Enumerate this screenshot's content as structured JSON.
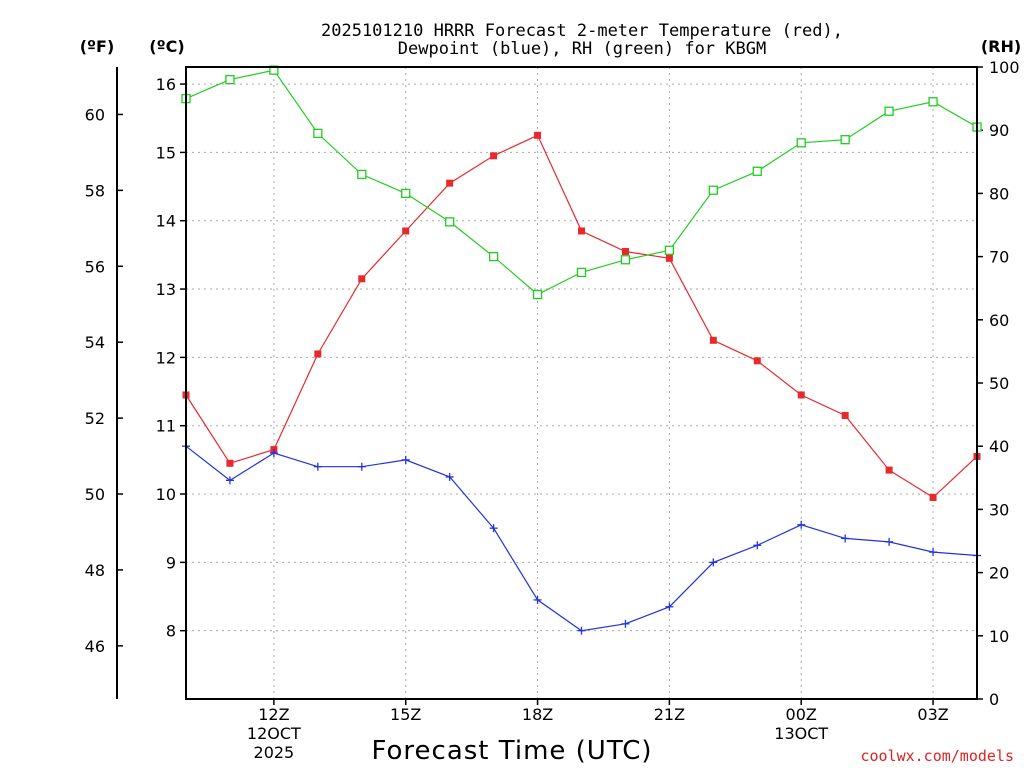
{
  "chart_data": {
    "type": "line",
    "title_lines": [
      "2025101210 HRRR Forecast 2-meter Temperature (red),",
      "Dewpoint (blue), RH (green) for KBGM"
    ],
    "left_outer_unit": "(ºF)",
    "left_inner_unit": "(ºC)",
    "right_unit": "(RH)",
    "xlabel": "Forecast Time (UTC)",
    "credit": "coolwx.com/models",
    "x_hours": [
      0,
      1,
      2,
      3,
      4,
      5,
      6,
      7,
      8,
      9,
      10,
      11,
      12,
      13,
      14,
      15,
      16,
      17,
      18
    ],
    "xlim": [
      0,
      18
    ],
    "x_ticks": [
      {
        "hour": 2,
        "lines": [
          "12Z",
          "12OCT",
          "2025"
        ]
      },
      {
        "hour": 5,
        "lines": [
          "15Z"
        ]
      },
      {
        "hour": 8,
        "lines": [
          "18Z"
        ]
      },
      {
        "hour": 11,
        "lines": [
          "21Z"
        ]
      },
      {
        "hour": 14,
        "lines": [
          "00Z",
          "13OCT"
        ]
      },
      {
        "hour": 17,
        "lines": [
          "03Z"
        ]
      }
    ],
    "celsius_axis": {
      "range": [
        7.0,
        16.25
      ],
      "ticks": [
        8,
        9,
        10,
        11,
        12,
        13,
        14,
        15,
        16
      ]
    },
    "fahrenheit_axis": {
      "range": [
        44.6,
        61.25
      ],
      "ticks": [
        46,
        48,
        50,
        52,
        54,
        56,
        58,
        60
      ]
    },
    "rh_axis": {
      "range": [
        0,
        100
      ],
      "ticks": [
        0,
        10,
        20,
        30,
        40,
        50,
        60,
        70,
        80,
        90,
        100
      ]
    },
    "series": [
      {
        "name": "2-meter Temperature",
        "axis": "celsius",
        "color": "#e8292b",
        "marker": "filled-square",
        "values": [
          11.45,
          10.45,
          10.65,
          12.05,
          13.15,
          13.85,
          14.55,
          14.95,
          15.25,
          13.85,
          13.55,
          13.45,
          12.25,
          11.95,
          11.45,
          11.15,
          10.35,
          9.95,
          10.55
        ]
      },
      {
        "name": "Dewpoint",
        "axis": "celsius",
        "color": "#2233dd",
        "marker": "plus",
        "values": [
          10.7,
          10.2,
          10.6,
          10.4,
          10.4,
          10.5,
          10.25,
          9.5,
          8.45,
          8.0,
          8.1,
          8.35,
          9.0,
          9.25,
          9.55,
          9.35,
          9.3,
          9.15,
          9.1
        ]
      },
      {
        "name": "RH",
        "axis": "rh",
        "color": "#22cc22",
        "marker": "open-square",
        "values": [
          95.0,
          98.0,
          99.5,
          89.5,
          83.0,
          80.0,
          75.5,
          70.0,
          64.0,
          67.5,
          69.5,
          71.0,
          80.5,
          83.5,
          88.0,
          88.5,
          93.0,
          94.5,
          90.5
        ]
      }
    ]
  }
}
